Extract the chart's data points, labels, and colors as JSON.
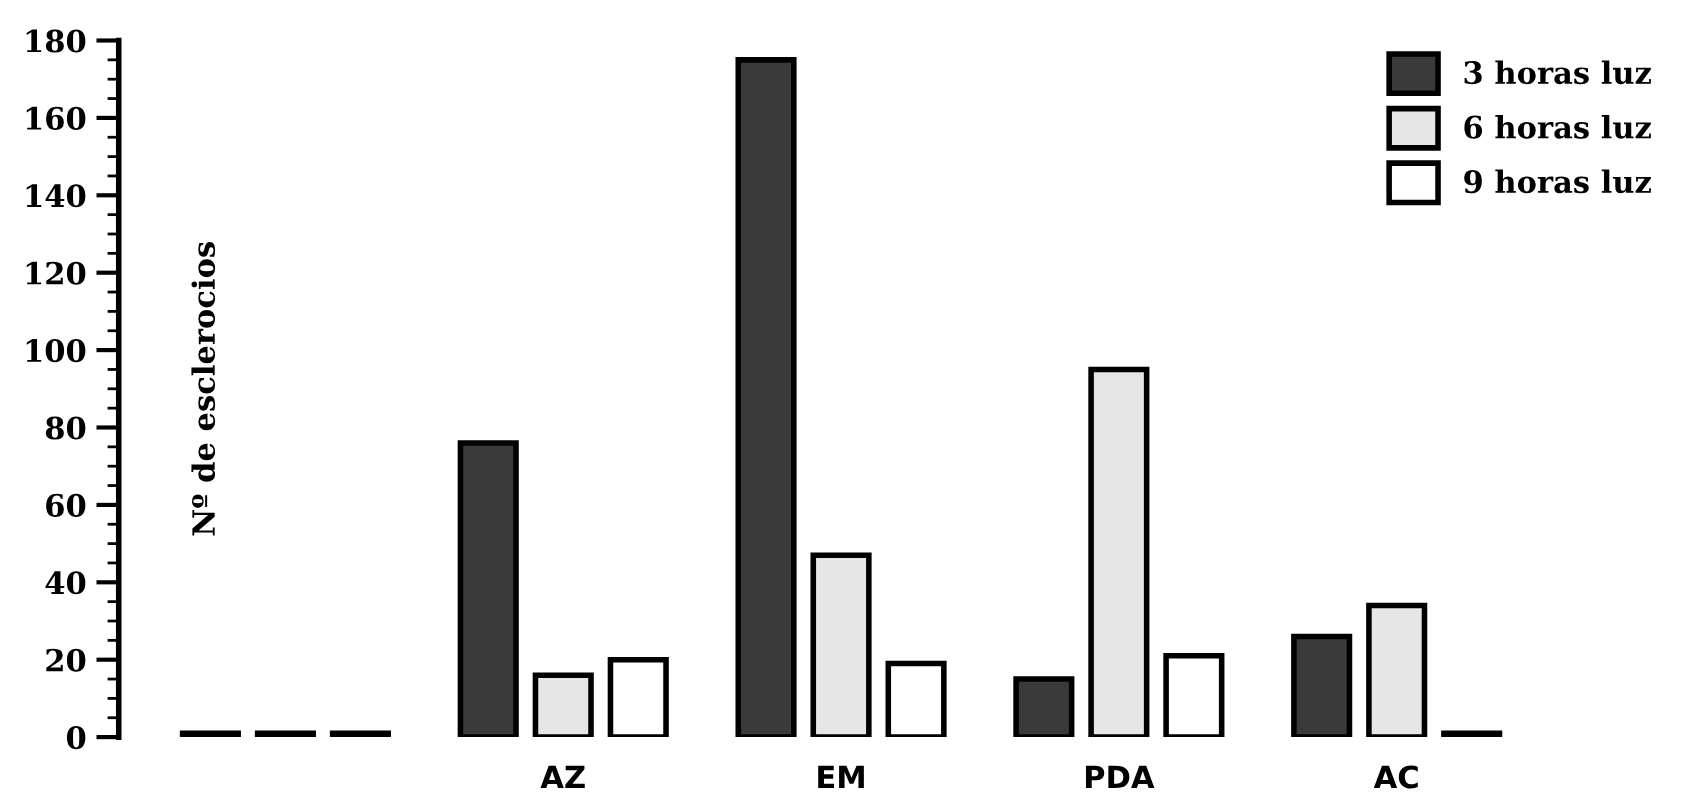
{
  "chart_data": {
    "type": "bar",
    "ylabel": "Nº de esclerocios",
    "categories": [
      null,
      "AZ",
      "EM",
      "PDA",
      "AC"
    ],
    "series": [
      {
        "name": "3 horas luz",
        "color": "#3a3a3a",
        "values": [
          1,
          76,
          175,
          15,
          26
        ]
      },
      {
        "name": "6 horas luz",
        "color": "#e6e6e6",
        "values": [
          1,
          16,
          47,
          95,
          34
        ]
      },
      {
        "name": "9 horas luz",
        "color": "#ffffff",
        "values": [
          1,
          20,
          19,
          21,
          1
        ]
      }
    ],
    "ylim": [
      0,
      180
    ],
    "yticks": [
      0,
      20,
      40,
      60,
      80,
      100,
      120,
      140,
      160,
      180
    ],
    "grid": false,
    "legend": "top right"
  }
}
